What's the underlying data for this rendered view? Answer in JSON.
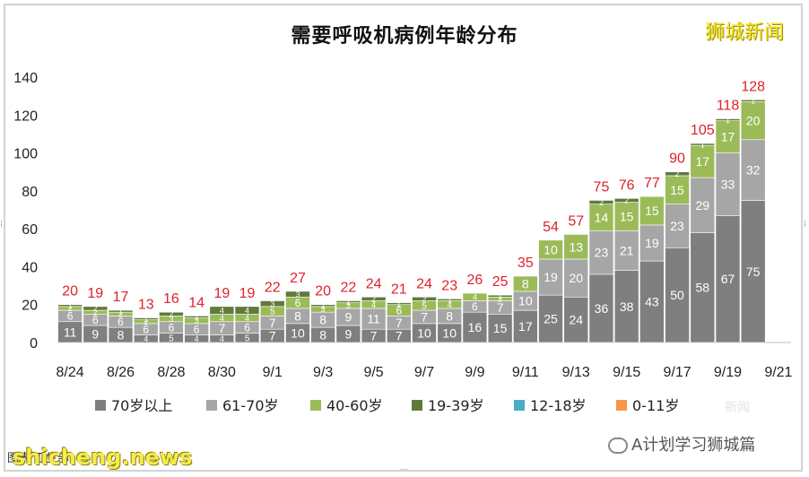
{
  "title": "需要呼吸机病例年龄分布",
  "brand_watermark": "狮城新闻",
  "wechat_watermark": "A计划学习狮城篇",
  "site_watermark": "shicheng.news",
  "source_note": "图表   卫生部",
  "dim_watermark": "新闻",
  "colors": {
    "70岁以上": "#7f7f7f",
    "61-70岁": "#a6a6a6",
    "40-60岁": "#9bbb59",
    "19-39岁": "#5f7a3b",
    "12-18岁": "#4bacc6",
    "0-11岁": "#f79646",
    "total_label": "#e0202a"
  },
  "chart_data": {
    "type": "bar",
    "stacked": true,
    "title": "需要呼吸机病例年龄分布",
    "categories": [
      "8/24",
      "8/25",
      "8/26",
      "8/27",
      "8/28",
      "8/29",
      "8/30",
      "8/31",
      "9/1",
      "9/2",
      "9/3",
      "9/4",
      "9/5",
      "9/6",
      "9/7",
      "9/8",
      "9/9",
      "9/10",
      "9/11",
      "9/12",
      "9/13",
      "9/14",
      "9/15",
      "9/16",
      "9/17",
      "9/18",
      "9/19",
      "9/20",
      "9/21"
    ],
    "x_tick_labels": [
      "8/24",
      "8/26",
      "8/28",
      "8/30",
      "9/1",
      "9/3",
      "9/5",
      "9/7",
      "9/9",
      "9/11",
      "9/13",
      "9/15",
      "9/17",
      "9/19",
      "9/21"
    ],
    "ylim": [
      0,
      140
    ],
    "yticks": [
      0,
      20,
      40,
      60,
      80,
      100,
      120,
      140
    ],
    "grid": false,
    "legend_position": "bottom",
    "series": [
      {
        "name": "70岁以上",
        "values": [
          11,
          9,
          8,
          4,
          5,
          4,
          4,
          5,
          7,
          10,
          8,
          9,
          7,
          7,
          10,
          10,
          16,
          15,
          17,
          25,
          24,
          36,
          38,
          43,
          50,
          58,
          67,
          75,
          null
        ]
      },
      {
        "name": "61-70岁",
        "values": [
          6,
          6,
          6,
          6,
          6,
          6,
          7,
          6,
          7,
          8,
          8,
          9,
          11,
          7,
          7,
          8,
          6,
          7,
          10,
          19,
          20,
          23,
          21,
          19,
          23,
          29,
          33,
          32,
          null
        ]
      },
      {
        "name": "40-60岁",
        "values": [
          2,
          2,
          2,
          2,
          3,
          3,
          4,
          4,
          5,
          6,
          3,
          3,
          4,
          6,
          5,
          4,
          4,
          2,
          8,
          10,
          13,
          14,
          15,
          15,
          15,
          17,
          17,
          20,
          null
        ]
      },
      {
        "name": "19-39岁",
        "values": [
          1,
          2,
          1,
          1,
          2,
          1,
          4,
          4,
          3,
          3,
          1,
          1,
          2,
          1,
          2,
          1,
          0,
          1,
          0,
          0,
          0,
          2,
          2,
          0,
          2,
          1,
          1,
          1,
          null
        ]
      },
      {
        "name": "12-18岁",
        "values": [
          0,
          0,
          0,
          0,
          0,
          0,
          0,
          0,
          0,
          0,
          0,
          0,
          0,
          0,
          0,
          0,
          0,
          0,
          0,
          0,
          0,
          0,
          0,
          0,
          0,
          0,
          0,
          0,
          null
        ]
      },
      {
        "name": "0-11岁",
        "values": [
          0,
          0,
          0,
          0,
          0,
          0,
          0,
          0,
          0,
          0,
          0,
          0,
          0,
          0,
          0,
          0,
          0,
          0,
          0,
          0,
          0,
          0,
          0,
          0,
          0,
          0,
          0,
          0,
          null
        ]
      }
    ],
    "totals": [
      20,
      19,
      17,
      13,
      16,
      14,
      19,
      19,
      22,
      27,
      20,
      22,
      24,
      21,
      24,
      23,
      26,
      25,
      35,
      54,
      57,
      75,
      76,
      77,
      90,
      105,
      118,
      128,
      null
    ]
  }
}
